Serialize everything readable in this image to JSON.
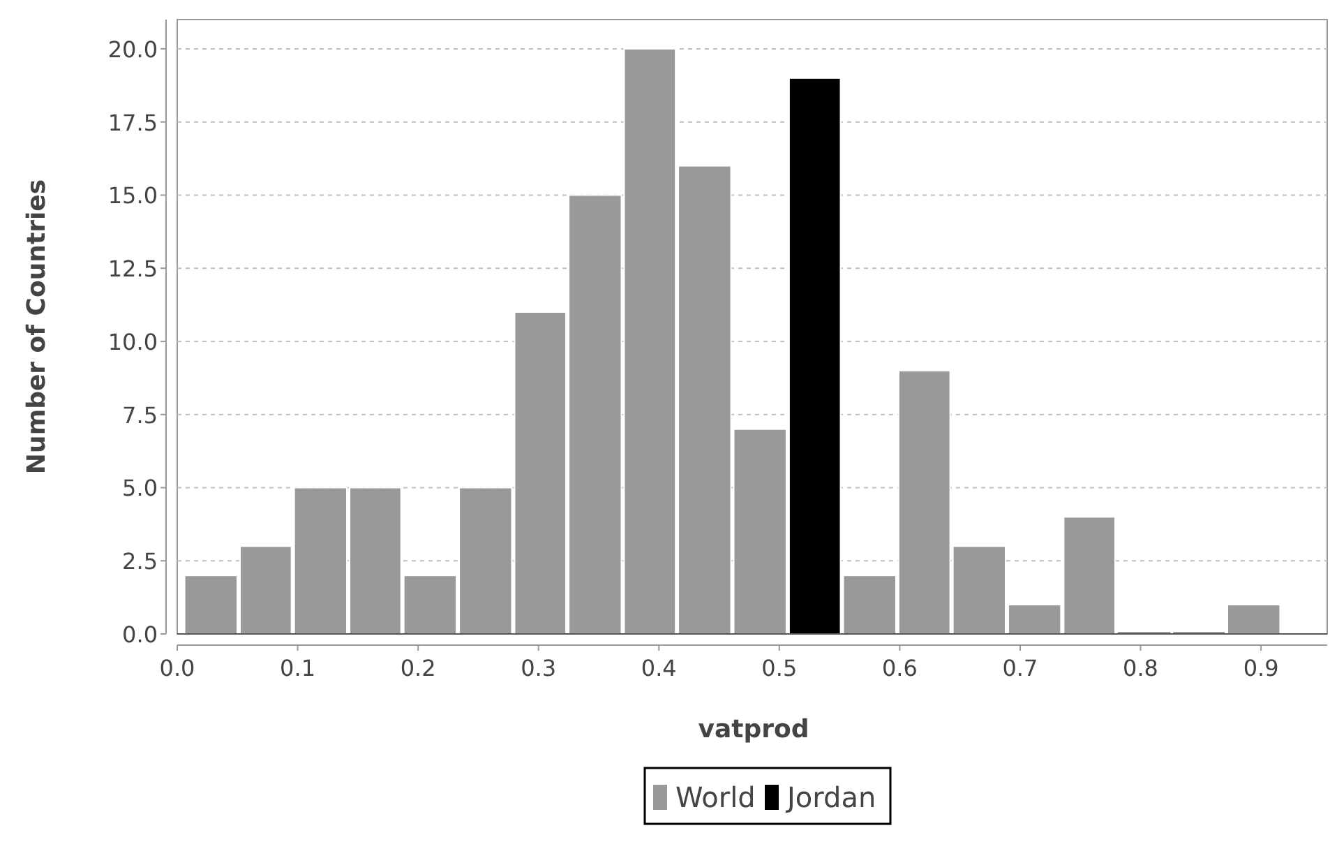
{
  "chart_data": {
    "type": "histogram",
    "xlabel": "vatprod",
    "ylabel": "Number of Countries",
    "bins": [
      0.005,
      0.051,
      0.096,
      0.142,
      0.187,
      0.233,
      0.279,
      0.324,
      0.37,
      0.415,
      0.461,
      0.507,
      0.552,
      0.598,
      0.643,
      0.689,
      0.735,
      0.78,
      0.826,
      0.871,
      0.917
    ],
    "series": [
      {
        "name": "World",
        "color": "#999999",
        "values": [
          2,
          3,
          5,
          5,
          2,
          5,
          11,
          15,
          20,
          16,
          7,
          null,
          2,
          9,
          3,
          1,
          4,
          0,
          0,
          1
        ]
      },
      {
        "name": "Jordan",
        "color": "#000000",
        "values": [
          null,
          null,
          null,
          null,
          null,
          null,
          null,
          null,
          null,
          null,
          null,
          19,
          null,
          null,
          null,
          null,
          null,
          null,
          null,
          null
        ]
      }
    ],
    "xlim": [
      0,
      0.955
    ],
    "xticks": [
      {
        "value": 0,
        "label": "0.0"
      },
      0.1,
      0.2,
      0.3,
      0.4,
      0.5,
      0.6,
      0.7,
      0.8,
      0.9
    ],
    "ylim": [
      0,
      21
    ],
    "yticks": [
      {
        "value": 0,
        "label": "0.0"
      },
      2.5,
      {
        "value": 5,
        "label": "5.0"
      },
      7.5,
      {
        "value": 10,
        "label": "10.0"
      },
      12.5,
      {
        "value": 15,
        "label": "15.0"
      },
      17.5,
      {
        "value": 20,
        "label": "20.0"
      }
    ],
    "grid": "y",
    "legend": "bottom"
  }
}
